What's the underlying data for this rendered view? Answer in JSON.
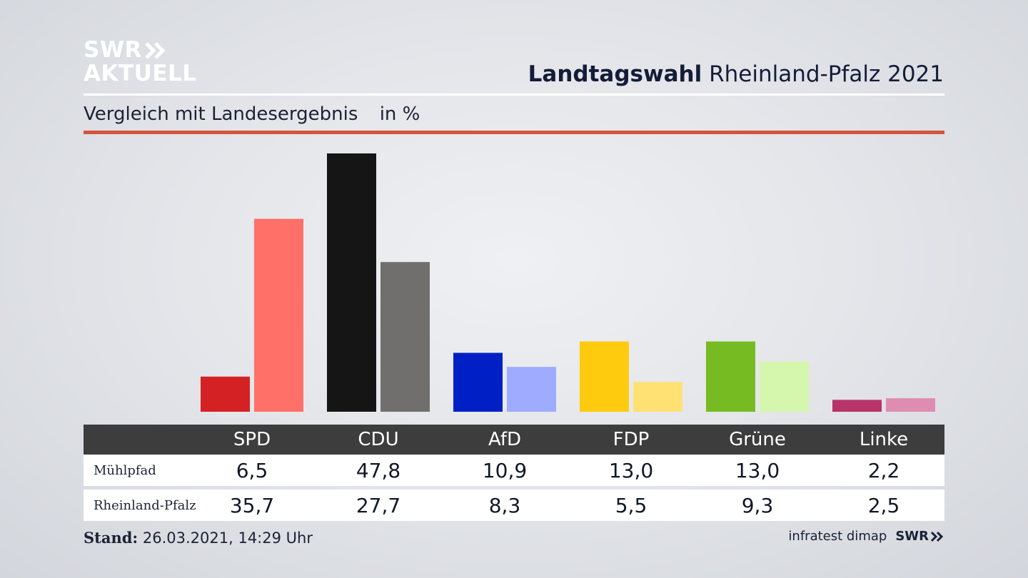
{
  "brand": {
    "line1": "SWR",
    "line2": "AKTUELL",
    "footer_logo": "SWR"
  },
  "header": {
    "title_bold": "Landtagswahl",
    "title_rest": "Rheinland-Pfalz 2021"
  },
  "subtitle": {
    "text": "Vergleich mit Landesergebnis",
    "unit": "in %"
  },
  "table": {
    "row_labels": [
      "Mühlpfad",
      "Rheinland-Pfalz"
    ]
  },
  "footer": {
    "stand_label": "Stand:",
    "stand_value": "26.03.2021, 14:29 Uhr",
    "source": "infratest dimap"
  },
  "chart_data": {
    "type": "bar",
    "title": "Landtagswahl Rheinland-Pfalz 2021",
    "subtitle": "Vergleich mit Landesergebnis",
    "ylabel": "in %",
    "ylim": [
      0,
      47.8
    ],
    "categories": [
      "SPD",
      "CDU",
      "AfD",
      "FDP",
      "Grüne",
      "Linke"
    ],
    "series": [
      {
        "name": "Mühlpfad",
        "values": [
          6.5,
          47.8,
          10.9,
          13.0,
          13.0,
          2.2
        ],
        "labels": [
          "6,5",
          "47,8",
          "10,9",
          "13,0",
          "13,0",
          "2,2"
        ],
        "colors": [
          "#d42123",
          "#151515",
          "#0020c6",
          "#ffcb0f",
          "#76bb21",
          "#b8336a"
        ]
      },
      {
        "name": "Rheinland-Pfalz",
        "values": [
          35.7,
          27.7,
          8.3,
          5.5,
          9.3,
          2.5
        ],
        "labels": [
          "35,7",
          "27,7",
          "8,3",
          "5,5",
          "9,3",
          "2,5"
        ],
        "colors": [
          "#ff7068",
          "#706f6d",
          "#9eabff",
          "#ffe173",
          "#d5f6ad",
          "#df8cb3"
        ]
      }
    ]
  }
}
